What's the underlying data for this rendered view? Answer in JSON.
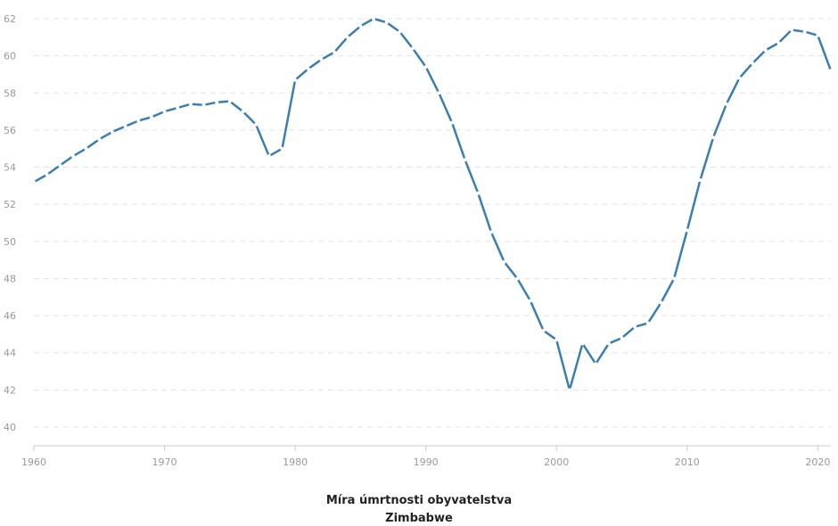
{
  "chart_data": {
    "type": "line",
    "title": "Míra úmrtnosti obyvatelstva",
    "subtitle": "Zimbabwe",
    "xlabel": "",
    "ylabel": "",
    "xlim": [
      1960,
      2021
    ],
    "ylim": [
      40,
      62
    ],
    "x_ticks": [
      "1960",
      "1970",
      "1980",
      "1990",
      "2000",
      "2010",
      "2020"
    ],
    "y_ticks": [
      "40",
      "42",
      "44",
      "46",
      "48",
      "50",
      "52",
      "54",
      "56",
      "58",
      "60",
      "62"
    ],
    "grid": "horizontal dashed",
    "line_color": "#3a7fb0",
    "series": [
      {
        "x": [
          1960,
          1961,
          1962,
          1963,
          1964,
          1965,
          1966,
          1967,
          1968,
          1969,
          1970,
          1971,
          1972,
          1973,
          1974,
          1975,
          1976,
          1977,
          1978,
          1979,
          1980,
          1981,
          1982,
          1983,
          1984,
          1985,
          1986,
          1987,
          1988,
          1989,
          1990,
          1991,
          1992,
          1993,
          1994,
          1995,
          1996,
          1997,
          1998,
          1999,
          2000,
          2001,
          2002,
          2003,
          2004,
          2005,
          2006,
          2007,
          2008,
          2009,
          2010,
          2011,
          2012,
          2013,
          2014,
          2015,
          2016,
          2017,
          2018,
          2019,
          2020,
          2021
        ],
        "values": [
          53.2,
          53.6,
          54.1,
          54.6,
          55.0,
          55.5,
          55.9,
          56.2,
          56.5,
          56.7,
          57.0,
          57.2,
          57.4,
          57.35,
          57.5,
          57.55,
          57.0,
          56.3,
          54.6,
          55.0,
          58.7,
          59.3,
          59.8,
          60.2,
          61.0,
          61.6,
          62.0,
          61.8,
          61.3,
          60.4,
          59.4,
          58.0,
          56.4,
          54.4,
          52.6,
          50.5,
          48.9,
          48.0,
          46.8,
          45.2,
          44.7,
          42.0,
          44.5,
          43.4,
          44.5,
          44.8,
          45.4,
          45.6,
          46.7,
          48.0,
          50.6,
          53.3,
          55.6,
          57.4,
          58.8,
          59.6,
          60.3,
          60.7,
          61.4,
          61.3,
          61.1,
          59.2
        ]
      }
    ]
  }
}
